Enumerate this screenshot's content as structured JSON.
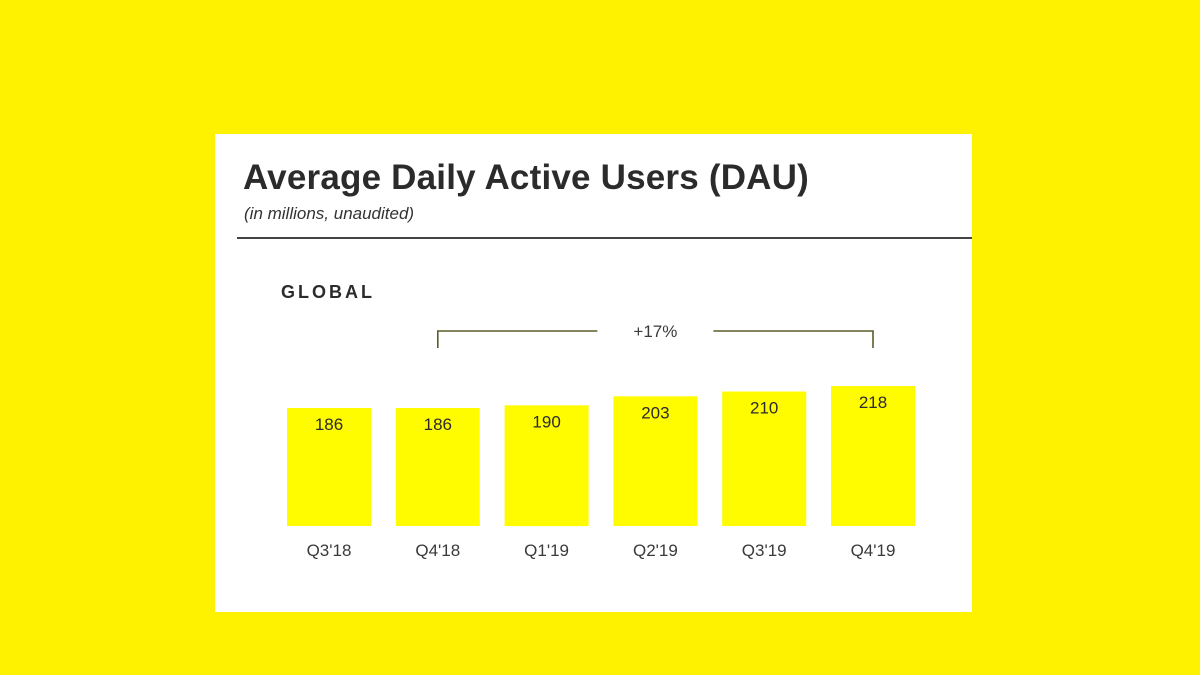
{
  "card": {
    "title": "Average Daily Active Users (DAU)",
    "subtitle": "(in millions, unaudited)",
    "section_label": "GLOBAL"
  },
  "colors": {
    "background": "#FFF200",
    "bar": "#FFFC00",
    "bracket": "#5E5B2A",
    "text": "#2B2B2B"
  },
  "chart_data": {
    "type": "bar",
    "categories": [
      "Q3'18",
      "Q4'18",
      "Q1'19",
      "Q2'19",
      "Q3'19",
      "Q4'19"
    ],
    "values": [
      186,
      186,
      190,
      203,
      210,
      218
    ],
    "data_labels": [
      "186",
      "186",
      "190",
      "203",
      "210",
      "218"
    ],
    "ylabel": "",
    "xlabel": "",
    "ylim": [
      0,
      218
    ],
    "grid": false,
    "legend": "none",
    "annotations": [
      {
        "text": "+17%",
        "from_category": "Q4'18",
        "to_category": "Q4'19"
      }
    ]
  }
}
